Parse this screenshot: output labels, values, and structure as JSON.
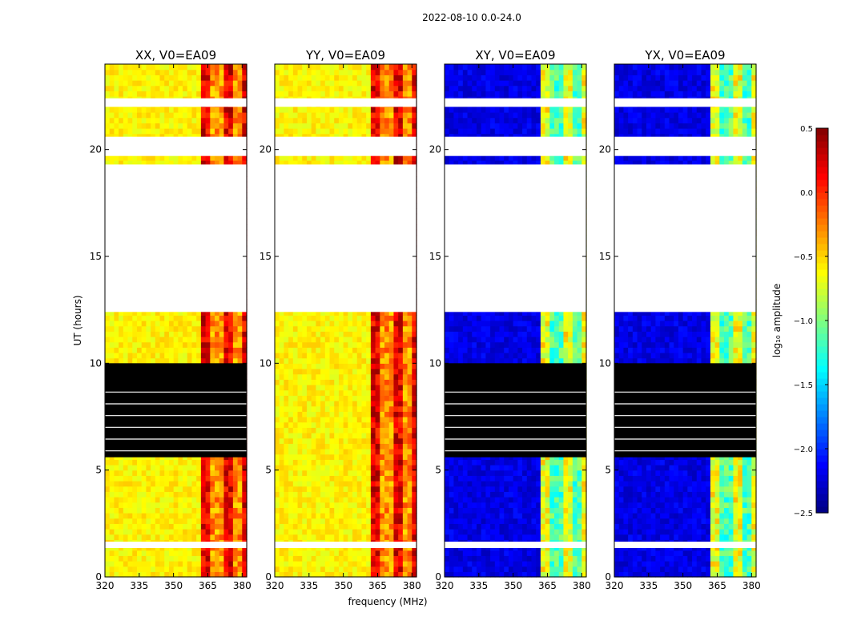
{
  "chart_data": {
    "type": "heatmap",
    "suptitle": "2022-08-10 0.0-24.0",
    "xlabel": "frequency (MHz)",
    "ylabel": "UT (hours)",
    "xlim": [
      320,
      382
    ],
    "ylim": [
      0,
      24
    ],
    "xticks": [
      320,
      335,
      350,
      365,
      380
    ],
    "yticks": [
      0,
      5,
      10,
      15,
      20
    ],
    "colormap": "jet",
    "colorbar": {
      "label": "log₁₀ amplitude",
      "range": [
        -2.5,
        0.5
      ],
      "ticks": [
        0.5,
        0.0,
        -0.5,
        -1.0,
        -1.5,
        -2.0,
        -2.5
      ],
      "tick_labels": [
        "0.5",
        "0.0",
        "−0.5",
        "−1.0",
        "−1.5",
        "−2.0",
        "−2.5"
      ]
    },
    "panels": [
      {
        "title": "XX, V0=EA09",
        "polarization": "XX",
        "base_level": -0.6,
        "band_level": 0.05,
        "flagged_black_hours": [
          5.6,
          10.0
        ],
        "blank_hours": [
          12.4,
          19.3
        ]
      },
      {
        "title": "YY, V0=EA09",
        "polarization": "YY",
        "base_level": -0.6,
        "band_level": 0.05,
        "flagged_black_hours": [],
        "blank_hours": [
          12.4,
          19.3
        ]
      },
      {
        "title": "XY, V0=EA09",
        "polarization": "XY",
        "base_level": -2.2,
        "band_level": -0.8,
        "flagged_black_hours": [
          5.6,
          10.0
        ],
        "blank_hours": [
          12.4,
          19.3
        ]
      },
      {
        "title": "YX, V0=EA09",
        "polarization": "YX",
        "base_level": -2.2,
        "band_level": -0.8,
        "flagged_black_hours": [
          5.6,
          10.0
        ],
        "blank_hours": [
          12.4,
          19.3
        ]
      }
    ],
    "rfi_band_MHz": [
      362,
      381
    ],
    "blank_gaps_hours": [
      [
        1.35,
        1.65
      ],
      [
        19.7,
        20.6
      ],
      [
        22.0,
        22.4
      ]
    ]
  }
}
